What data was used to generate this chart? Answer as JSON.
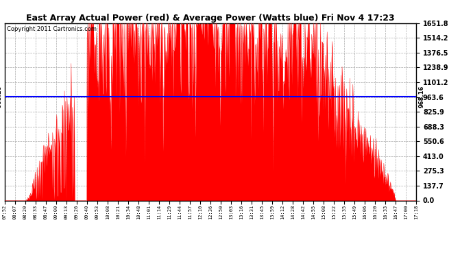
{
  "title": "East Array Actual Power (red) & Average Power (Watts blue) Fri Nov 4 17:23",
  "copyright": "Copyright 2011 Cartronics.com",
  "ymax": 1651.8,
  "ymin": 0.0,
  "yticks": [
    0.0,
    137.7,
    275.3,
    413.0,
    550.6,
    688.3,
    825.9,
    963.6,
    1101.2,
    1238.9,
    1376.5,
    1514.2,
    1651.8
  ],
  "avg_power_line": 968.16,
  "avg_label": "968.16",
  "fill_color": "red",
  "line_color": "blue",
  "background_color": "#ffffff",
  "grid_color": "#aaaaaa",
  "xtick_labels": [
    "07:52",
    "08:07",
    "08:20",
    "08:33",
    "08:47",
    "09:00",
    "09:13",
    "09:26",
    "09:40",
    "09:53",
    "10:08",
    "10:21",
    "10:34",
    "10:48",
    "11:01",
    "11:14",
    "11:29",
    "11:44",
    "11:57",
    "12:10",
    "12:36",
    "12:50",
    "13:03",
    "13:16",
    "13:31",
    "13:45",
    "13:59",
    "14:12",
    "14:28",
    "14:42",
    "14:55",
    "15:08",
    "15:22",
    "15:35",
    "15:49",
    "16:06",
    "16:20",
    "16:33",
    "16:47",
    "17:00",
    "17:18"
  ]
}
